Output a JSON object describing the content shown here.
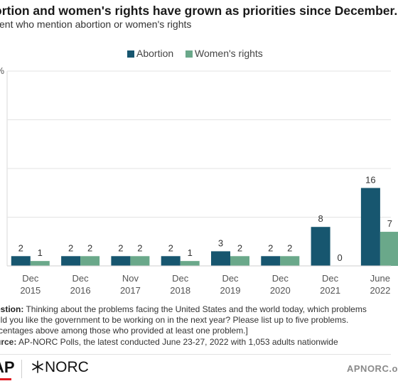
{
  "header": {
    "title": "ortion and women's rights have grown as priorities since December.",
    "subtitle": "cent who mention abortion or women's rights"
  },
  "chart_data": {
    "type": "bar",
    "categories": [
      [
        "Dec",
        "2015"
      ],
      [
        "Dec",
        "2016"
      ],
      [
        "Nov",
        "2017"
      ],
      [
        "Dec",
        "2018"
      ],
      [
        "Dec",
        "2019"
      ],
      [
        "Dec",
        "2020"
      ],
      [
        "Dec",
        "2021"
      ],
      [
        "June",
        "2022"
      ]
    ],
    "series": [
      {
        "name": "Abortion",
        "color": "#17566f",
        "values": [
          2,
          2,
          2,
          2,
          3,
          2,
          8,
          16
        ]
      },
      {
        "name": "Women's rights",
        "color": "#6aa88a",
        "values": [
          1,
          2,
          2,
          1,
          2,
          2,
          0,
          7
        ]
      }
    ],
    "ylim": [
      0,
      40
    ],
    "y_tick_label": "%",
    "grid": true,
    "legend_position": "top-center"
  },
  "notes": {
    "question_label": "estion:",
    "question_text": " Thinking about the problems facing the United States and the world today, which problems",
    "question_line2": "uld you like the government to be working on in the next year? Please list up to five problems.",
    "question_line3": "rcentages above among those who provided at least one problem.]",
    "source_label": "urce:",
    "source_text": " AP-NORC Polls, the latest conducted June 23-27, 2022 with 1,053 adults nationwide"
  },
  "footer": {
    "ap_logo": "AP",
    "norc_logo": "NORC",
    "site": "APNORC.o"
  }
}
